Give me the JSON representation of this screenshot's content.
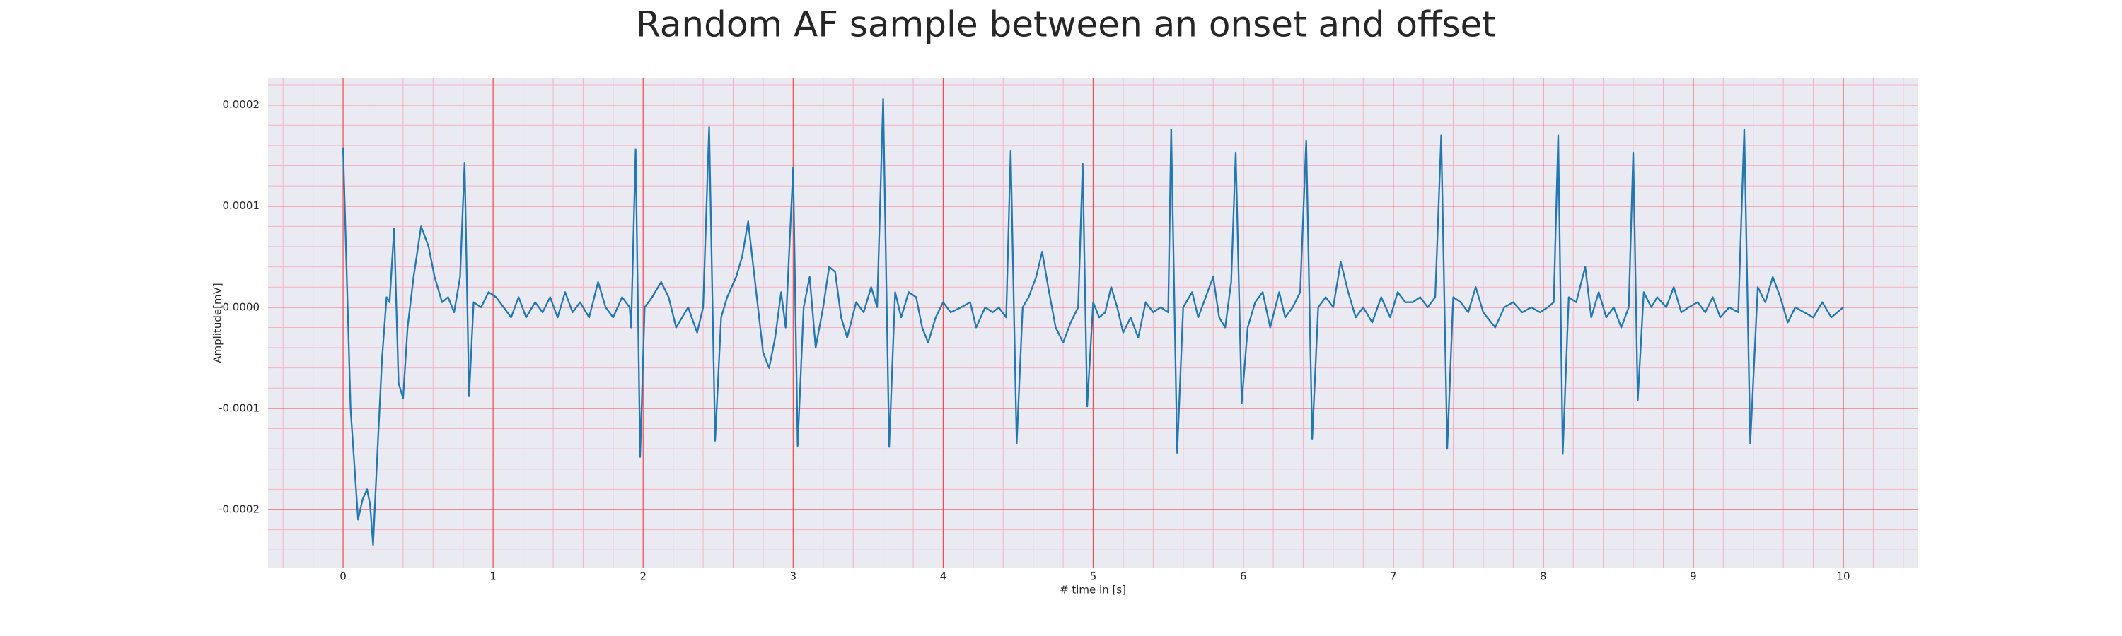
{
  "chart_data": {
    "type": "line",
    "title": "Random AF sample between an onset and offset",
    "x_label": "# time in [s]",
    "y_label": "Amplitude[mV]",
    "xlim": [
      -0.5,
      10.5
    ],
    "ylim": [
      -0.000258,
      0.000227
    ],
    "xticks": [
      0,
      1,
      2,
      3,
      4,
      5,
      6,
      7,
      8,
      9,
      10
    ],
    "yticks": [
      -0.0002,
      -0.0001,
      {
        "value": 0,
        "label": "0.0000"
      },
      0.0001,
      0.0002
    ],
    "grid": true,
    "minor_grid_divisions": 5,
    "series": [
      {
        "color": "#1f77b4",
        "x": [
          0,
          0.05,
          0.1,
          0.13,
          0.16,
          0.18,
          0.2,
          0.23,
          0.26,
          0.29,
          0.31,
          0.34,
          0.37,
          0.4,
          0.43,
          0.47,
          0.52,
          0.57,
          0.61,
          0.66,
          0.7,
          0.74,
          0.78,
          0.81,
          0.84,
          0.87,
          0.92,
          0.97,
          1.02,
          1.07,
          1.12,
          1.17,
          1.22,
          1.28,
          1.33,
          1.38,
          1.43,
          1.48,
          1.53,
          1.58,
          1.64,
          1.7,
          1.75,
          1.8,
          1.86,
          1.91,
          1.92,
          1.95,
          1.98,
          2.01,
          2.06,
          2.12,
          2.17,
          2.22,
          2.3,
          2.36,
          2.4,
          2.44,
          2.48,
          2.52,
          2.56,
          2.62,
          2.66,
          2.7,
          2.75,
          2.8,
          2.84,
          2.88,
          2.92,
          2.95,
          3.0,
          3.03,
          3.07,
          3.11,
          3.15,
          3.2,
          3.24,
          3.28,
          3.32,
          3.36,
          3.42,
          3.47,
          3.52,
          3.56,
          3.6,
          3.64,
          3.68,
          3.72,
          3.77,
          3.82,
          3.86,
          3.9,
          3.95,
          4.0,
          4.05,
          4.12,
          4.18,
          4.22,
          4.28,
          4.33,
          4.37,
          4.42,
          4.45,
          4.49,
          4.53,
          4.57,
          4.62,
          4.66,
          4.7,
          4.75,
          4.8,
          4.85,
          4.9,
          4.93,
          4.96,
          5.0,
          5.04,
          5.08,
          5.12,
          5.16,
          5.2,
          5.25,
          5.3,
          5.35,
          5.4,
          5.45,
          5.5,
          5.52,
          5.56,
          5.6,
          5.66,
          5.7,
          5.75,
          5.8,
          5.84,
          5.88,
          5.92,
          5.95,
          5.99,
          6.03,
          6.08,
          6.13,
          6.18,
          6.24,
          6.28,
          6.33,
          6.38,
          6.42,
          6.46,
          6.5,
          6.55,
          6.6,
          6.65,
          6.7,
          6.75,
          6.8,
          6.86,
          6.92,
          6.98,
          7.03,
          7.08,
          7.13,
          7.18,
          7.23,
          7.28,
          7.32,
          7.36,
          7.4,
          7.45,
          7.5,
          7.55,
          7.6,
          7.68,
          7.74,
          7.8,
          7.86,
          7.92,
          7.98,
          8.03,
          8.07,
          8.1,
          8.13,
          8.17,
          8.22,
          8.28,
          8.32,
          8.37,
          8.42,
          8.47,
          8.52,
          8.57,
          8.6,
          8.63,
          8.67,
          8.72,
          8.76,
          8.82,
          8.87,
          8.92,
          8.97,
          9.03,
          9.08,
          9.13,
          9.18,
          9.24,
          9.3,
          9.34,
          9.38,
          9.43,
          9.48,
          9.53,
          9.58,
          9.63,
          9.68,
          9.74,
          9.8,
          9.86,
          9.92,
          9.96,
          10.0
        ],
        "values": [
          0.000158,
          -0.0001,
          -0.00021,
          -0.00019,
          -0.00018,
          -0.000195,
          -0.000235,
          -0.00014,
          -5e-05,
          1e-05,
          5e-06,
          7.8e-05,
          -7.5e-05,
          -9e-05,
          -2e-05,
          3e-05,
          8e-05,
          6e-05,
          3e-05,
          5e-06,
          1e-05,
          -5e-06,
          3e-05,
          0.000143,
          -8.8e-05,
          5e-06,
          0,
          1.5e-05,
          1e-05,
          0,
          -1e-05,
          1e-05,
          -1e-05,
          5e-06,
          -5e-06,
          1e-05,
          -1e-05,
          1.5e-05,
          -5e-06,
          5e-06,
          -1e-05,
          2.5e-05,
          0,
          -1e-05,
          1e-05,
          0,
          -2e-05,
          0.000156,
          -0.000148,
          0,
          1e-05,
          2.5e-05,
          1e-05,
          -2e-05,
          0,
          -2.5e-05,
          0,
          0.000178,
          -0.000132,
          -1e-05,
          1e-05,
          3e-05,
          5e-05,
          8.5e-05,
          2e-05,
          -4.5e-05,
          -6e-05,
          -3e-05,
          1.5e-05,
          -2e-05,
          0.000138,
          -0.000137,
          0,
          3e-05,
          -4e-05,
          0,
          4e-05,
          3.5e-05,
          -1e-05,
          -3e-05,
          5e-06,
          -5e-06,
          2e-05,
          0,
          0.000206,
          -0.000138,
          1.5e-05,
          -1e-05,
          1.5e-05,
          1e-05,
          -2e-05,
          -3.5e-05,
          -1e-05,
          5e-06,
          -5e-06,
          0,
          5e-06,
          -2e-05,
          0,
          -5e-06,
          0,
          -1e-05,
          0.000155,
          -0.000135,
          0,
          1e-05,
          3e-05,
          5.5e-05,
          2e-05,
          -2e-05,
          -3.5e-05,
          -1.5e-05,
          0,
          0.000142,
          -9.8e-05,
          5e-06,
          -1e-05,
          -5e-06,
          2e-05,
          0,
          -2.5e-05,
          -1e-05,
          -3e-05,
          5e-06,
          -5e-06,
          0,
          -5e-06,
          0.000176,
          -0.000144,
          0,
          1.5e-05,
          -1e-05,
          1e-05,
          3e-05,
          -1e-05,
          -2e-05,
          2.5e-05,
          0.000153,
          -9.5e-05,
          -2e-05,
          5e-06,
          1.5e-05,
          -2e-05,
          1.5e-05,
          -1e-05,
          0,
          1.5e-05,
          0.000165,
          -0.00013,
          0,
          1e-05,
          0,
          4.5e-05,
          1.5e-05,
          -1e-05,
          0,
          -1.5e-05,
          1e-05,
          -1e-05,
          1.5e-05,
          5e-06,
          5e-06,
          1e-05,
          0,
          1e-05,
          0.00017,
          -0.00014,
          1e-05,
          5e-06,
          -5e-06,
          2e-05,
          -5e-06,
          -2e-05,
          0,
          5e-06,
          -5e-06,
          0,
          -5e-06,
          0,
          5e-06,
          0.00017,
          -0.000145,
          1e-05,
          5e-06,
          4e-05,
          -1e-05,
          1.5e-05,
          -1e-05,
          0,
          -2e-05,
          0,
          0.000153,
          -9.2e-05,
          1.5e-05,
          0,
          1e-05,
          0,
          2e-05,
          -5e-06,
          0,
          5e-06,
          -5e-06,
          1e-05,
          -1e-05,
          0,
          -5e-06,
          0.000176,
          -0.000135,
          2e-05,
          5e-06,
          3e-05,
          1e-05,
          -1.5e-05,
          0,
          -5e-06,
          -1e-05,
          5e-06,
          -1e-05,
          -5e-06,
          0
        ]
      }
    ]
  }
}
